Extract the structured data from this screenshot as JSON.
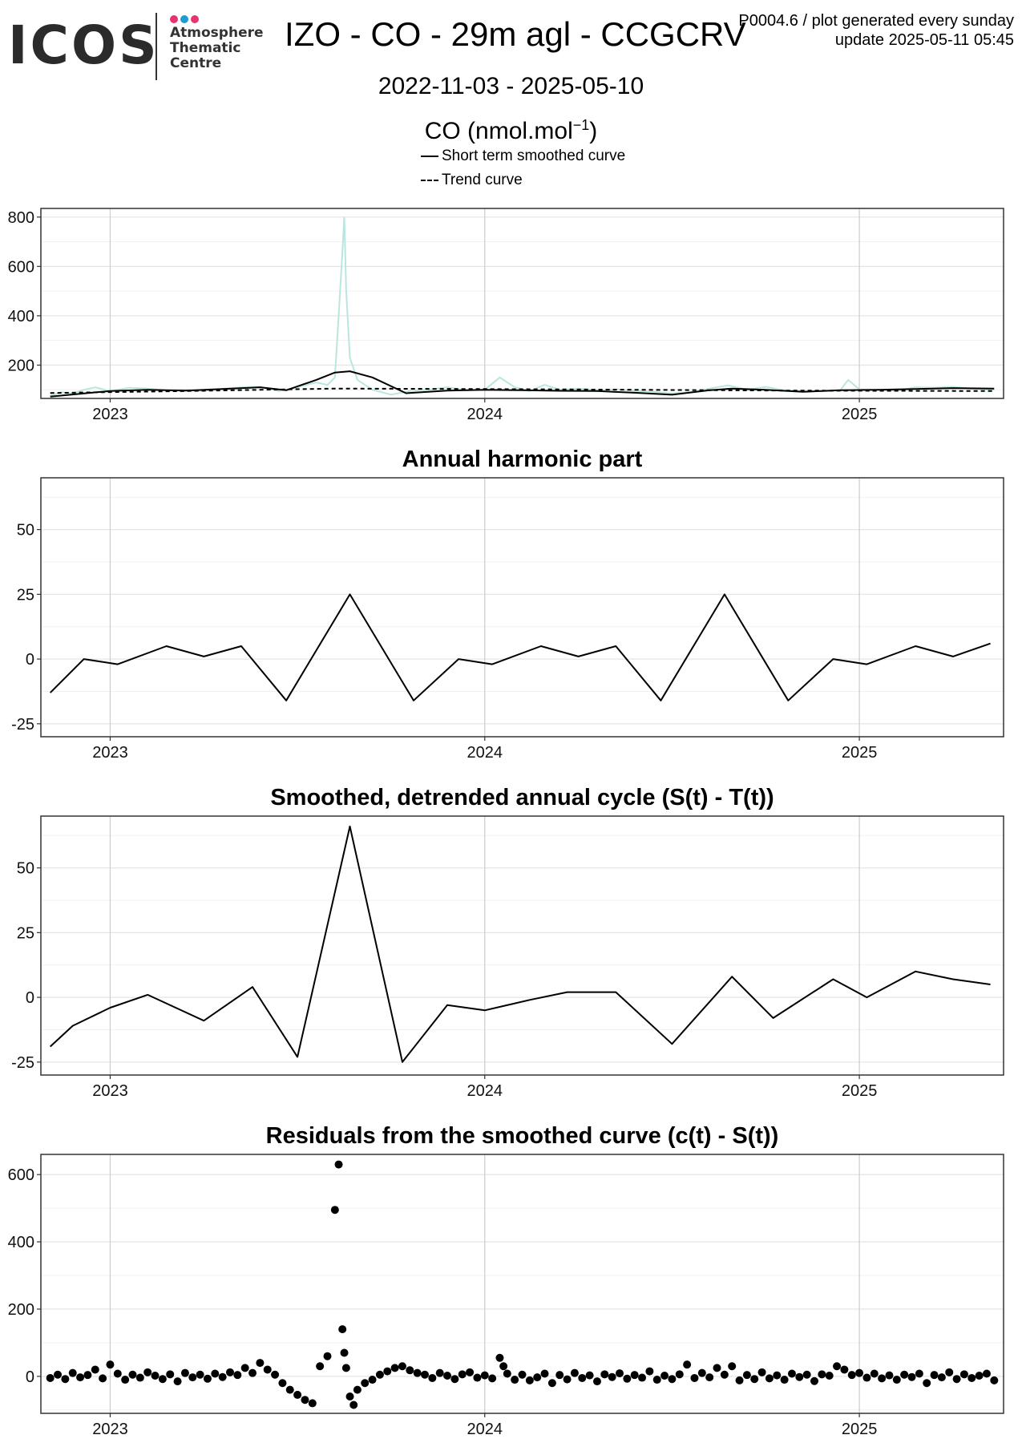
{
  "header": {
    "logo_word": "ICOS",
    "logo_lines": [
      "Atmosphere",
      "Thematic",
      "Centre"
    ],
    "logo_dot_colors": [
      "#e8336e",
      "#1e9bd7",
      "#e8336e"
    ],
    "title": "IZO - CO - 29m agl - CCGCRV",
    "corner_line1": "P0004.6 / plot generated every sunday",
    "corner_line2": "update  2025-05-11 05:45",
    "date_range": "2022-11-03 - 2025-05-10",
    "ylabel": "CO (nmol.mol",
    "ylabel_sup": "−1",
    "ylabel_end": ")",
    "legend": [
      {
        "label": "Short term smoothed curve",
        "style": "solid"
      },
      {
        "label": "Trend curve",
        "style": "dashed"
      }
    ]
  },
  "chart_data": [
    {
      "type": "line",
      "title": "",
      "x_ticks": [
        "2023",
        "2024",
        "2025"
      ],
      "x_tick_values": [
        2023.0,
        2024.0,
        2025.0
      ],
      "xlim": [
        2022.815,
        2025.385
      ],
      "y_ticks": [
        200,
        400,
        600,
        800
      ],
      "ylim": [
        65,
        835
      ],
      "grid": true,
      "legend": "top",
      "raw_color": "#b9e6df",
      "series": [
        {
          "name": "Short term smoothed curve",
          "style": "solid",
          "x": [
            2022.84,
            2022.95,
            2023.0,
            2023.1,
            2023.2,
            2023.3,
            2023.4,
            2023.47,
            2023.55,
            2023.6,
            2023.64,
            2023.7,
            2023.79,
            2023.9,
            2024.0,
            2024.1,
            2024.2,
            2024.3,
            2024.4,
            2024.5,
            2024.6,
            2024.66,
            2024.75,
            2024.85,
            2024.95,
            2025.05,
            2025.15,
            2025.25,
            2025.36
          ],
          "y": [
            72,
            88,
            95,
            100,
            97,
            103,
            110,
            98,
            140,
            170,
            175,
            150,
            86,
            97,
            100,
            98,
            96,
            95,
            88,
            80,
            98,
            105,
            100,
            92,
            98,
            100,
            103,
            107,
            105
          ]
        },
        {
          "name": "Trend curve",
          "style": "dashed",
          "x": [
            2022.84,
            2023.2,
            2023.6,
            2024.0,
            2024.4,
            2024.8,
            2025.36
          ],
          "y": [
            87,
            95,
            105,
            103,
            100,
            97,
            95
          ]
        }
      ],
      "raw": {
        "x": [
          2022.84,
          2022.87,
          2022.9,
          2022.93,
          2022.96,
          2023.0,
          2023.05,
          2023.1,
          2023.15,
          2023.2,
          2023.25,
          2023.3,
          2023.35,
          2023.4,
          2023.45,
          2023.5,
          2023.55,
          2023.58,
          2023.6,
          2023.61,
          2023.62,
          2023.625,
          2023.63,
          2023.64,
          2023.66,
          2023.7,
          2023.75,
          2023.8,
          2023.85,
          2023.9,
          2023.95,
          2024.0,
          2024.04,
          2024.08,
          2024.12,
          2024.16,
          2024.2,
          2024.25,
          2024.3,
          2024.35,
          2024.4,
          2024.45,
          2024.5,
          2024.55,
          2024.6,
          2024.65,
          2024.7,
          2024.75,
          2024.8,
          2024.85,
          2024.9,
          2024.95,
          2024.97,
          2025.0,
          2025.05,
          2025.1,
          2025.15,
          2025.2,
          2025.25,
          2025.3,
          2025.36
        ],
        "y": [
          75,
          90,
          85,
          100,
          110,
          95,
          108,
          105,
          98,
          100,
          95,
          104,
          110,
          112,
          95,
          110,
          130,
          120,
          150,
          400,
          660,
          800,
          500,
          230,
          140,
          100,
          80,
          95,
          100,
          110,
          98,
          100,
          150,
          110,
          95,
          120,
          100,
          105,
          98,
          102,
          96,
          92,
          85,
          90,
          105,
          118,
          100,
          112,
          98,
          95,
          94,
          100,
          140,
          102,
          100,
          96,
          110,
          108,
          112,
          104,
          100
        ]
      }
    },
    {
      "type": "line",
      "title": "Annual harmonic part",
      "x_ticks": [
        "2023",
        "2024",
        "2025"
      ],
      "x_tick_values": [
        2023.0,
        2024.0,
        2025.0
      ],
      "xlim": [
        2022.815,
        2025.385
      ],
      "y_ticks": [
        -25,
        0,
        25,
        50
      ],
      "ylim": [
        -30,
        70
      ],
      "grid": true,
      "series": [
        {
          "style": "solid",
          "x": [
            2022.84,
            2022.93,
            2023.02,
            2023.15,
            2023.25,
            2023.35,
            2023.47,
            2023.64,
            2023.81,
            2023.93,
            2024.02,
            2024.15,
            2024.25,
            2024.35,
            2024.47,
            2024.64,
            2024.81,
            2024.93,
            2025.02,
            2025.15,
            2025.25,
            2025.35
          ],
          "y": [
            -13,
            0,
            -2,
            5,
            1,
            5,
            -16,
            25,
            -16,
            0,
            -2,
            5,
            1,
            5,
            -16,
            25,
            -16,
            0,
            -2,
            5,
            1,
            6
          ]
        }
      ]
    },
    {
      "type": "line",
      "title": "Smoothed, detrended annual cycle (S(t) - T(t))",
      "x_ticks": [
        "2023",
        "2024",
        "2025"
      ],
      "x_tick_values": [
        2023.0,
        2024.0,
        2025.0
      ],
      "xlim": [
        2022.815,
        2025.385
      ],
      "y_ticks": [
        -25,
        0,
        25,
        50
      ],
      "ylim": [
        -30,
        70
      ],
      "grid": true,
      "series": [
        {
          "style": "solid",
          "x": [
            2022.84,
            2022.9,
            2023.0,
            2023.1,
            2023.25,
            2023.38,
            2023.5,
            2023.64,
            2023.78,
            2023.9,
            2024.0,
            2024.12,
            2024.22,
            2024.35,
            2024.5,
            2024.66,
            2024.77,
            2024.93,
            2025.02,
            2025.15,
            2025.25,
            2025.35
          ],
          "y": [
            -19,
            -11,
            -4,
            1,
            -9,
            4,
            -23,
            66,
            -25,
            -3,
            -5,
            -1,
            2,
            2,
            -18,
            8,
            -8,
            7,
            0,
            10,
            7,
            5
          ]
        }
      ]
    },
    {
      "type": "scatter",
      "title": "Residuals from the smoothed curve (c(t) - S(t))",
      "x_ticks": [
        "2023",
        "2024",
        "2025"
      ],
      "x_tick_values": [
        2023.0,
        2024.0,
        2025.0
      ],
      "xlim": [
        2022.815,
        2025.385
      ],
      "y_ticks": [
        0,
        200,
        400,
        600
      ],
      "ylim": [
        -110,
        660
      ],
      "grid": true,
      "points": {
        "x": [
          2022.84,
          2022.86,
          2022.88,
          2022.9,
          2022.92,
          2022.94,
          2022.96,
          2022.98,
          2023.0,
          2023.02,
          2023.04,
          2023.06,
          2023.08,
          2023.1,
          2023.12,
          2023.14,
          2023.16,
          2023.18,
          2023.2,
          2023.22,
          2023.24,
          2023.26,
          2023.28,
          2023.3,
          2023.32,
          2023.34,
          2023.36,
          2023.38,
          2023.4,
          2023.42,
          2023.44,
          2023.46,
          2023.48,
          2023.5,
          2023.52,
          2023.54,
          2023.56,
          2023.58,
          2023.6,
          2023.61,
          2023.62,
          2023.625,
          2023.63,
          2023.64,
          2023.65,
          2023.66,
          2023.68,
          2023.7,
          2023.72,
          2023.74,
          2023.76,
          2023.78,
          2023.8,
          2023.82,
          2023.84,
          2023.86,
          2023.88,
          2023.9,
          2023.92,
          2023.94,
          2023.96,
          2023.98,
          2024.0,
          2024.02,
          2024.04,
          2024.05,
          2024.06,
          2024.08,
          2024.1,
          2024.12,
          2024.14,
          2024.16,
          2024.18,
          2024.2,
          2024.22,
          2024.24,
          2024.26,
          2024.28,
          2024.3,
          2024.32,
          2024.34,
          2024.36,
          2024.38,
          2024.4,
          2024.42,
          2024.44,
          2024.46,
          2024.48,
          2024.5,
          2024.52,
          2024.54,
          2024.56,
          2024.58,
          2024.6,
          2024.62,
          2024.64,
          2024.66,
          2024.68,
          2024.7,
          2024.72,
          2024.74,
          2024.76,
          2024.78,
          2024.8,
          2024.82,
          2024.84,
          2024.86,
          2024.88,
          2024.9,
          2024.92,
          2024.94,
          2024.96,
          2024.98,
          2025.0,
          2025.02,
          2025.04,
          2025.06,
          2025.08,
          2025.1,
          2025.12,
          2025.14,
          2025.16,
          2025.18,
          2025.2,
          2025.22,
          2025.24,
          2025.26,
          2025.28,
          2025.3,
          2025.32,
          2025.34,
          2025.36
        ],
        "y": [
          -5,
          5,
          -8,
          10,
          -3,
          4,
          20,
          -6,
          35,
          8,
          -10,
          5,
          -4,
          12,
          2,
          -8,
          6,
          -15,
          10,
          -3,
          5,
          -7,
          8,
          -2,
          12,
          4,
          25,
          10,
          40,
          20,
          5,
          -20,
          -40,
          -55,
          -70,
          -80,
          30,
          60,
          495,
          630,
          140,
          70,
          25,
          -60,
          -85,
          -40,
          -20,
          -10,
          5,
          15,
          25,
          30,
          18,
          10,
          5,
          -5,
          10,
          2,
          -8,
          6,
          12,
          -4,
          3,
          -6,
          55,
          30,
          8,
          -10,
          5,
          -12,
          -3,
          8,
          -20,
          4,
          -9,
          10,
          -5,
          3,
          -15,
          6,
          -2,
          9,
          -7,
          4,
          -4,
          15,
          -10,
          2,
          -8,
          6,
          35,
          -5,
          10,
          -3,
          25,
          5,
          30,
          -12,
          4,
          -8,
          12,
          -6,
          3,
          -10,
          8,
          -2,
          5,
          -14,
          6,
          2,
          30,
          20,
          4,
          10,
          -4,
          8,
          -6,
          3,
          -10,
          5,
          -2,
          8,
          -20,
          4,
          -3,
          12,
          -8,
          6,
          -5,
          2,
          8,
          -12
        ]
      }
    }
  ]
}
